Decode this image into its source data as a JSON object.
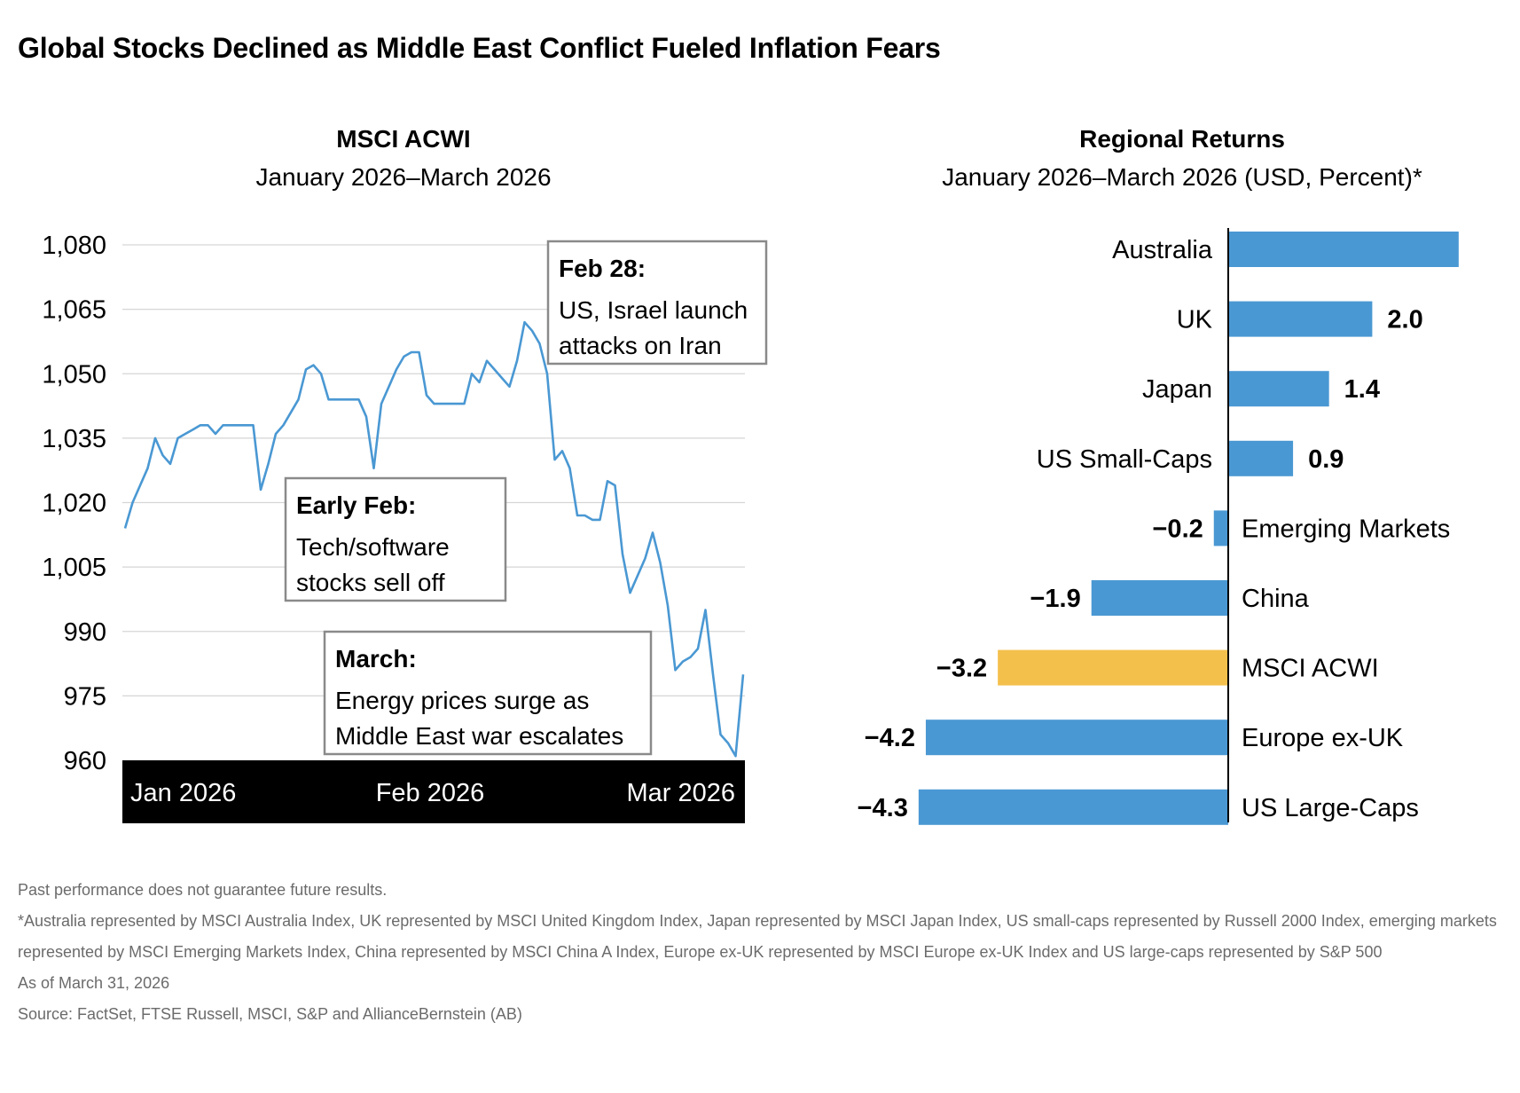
{
  "title": "Global Stocks Declined as Middle East Conflict Fueled Inflation Fears",
  "colors": {
    "bar": "#4a98d3",
    "highlight": "#f4c04c",
    "line": "#4a98d3",
    "axis_band": "#000000",
    "grid": "#d6d6d6",
    "note_border": "#8a8a8a"
  },
  "chart_data": [
    {
      "type": "line",
      "title": "MSCI ACWI",
      "subtitle": "January 2026–March 2026",
      "ylim": [
        960,
        1080
      ],
      "yticks": [
        1080,
        1065,
        1050,
        1035,
        1020,
        1005,
        990,
        975,
        960
      ],
      "ytick_labels": [
        "1,080",
        "1,065",
        "1,050",
        "1,035",
        "1,020",
        "1,005",
        "990",
        "975",
        "960"
      ],
      "xtick_labels": [
        "Jan 2026",
        "Feb 2026",
        "Mar 2026"
      ],
      "grid": true,
      "series": [
        {
          "values": [
            1014,
            1020,
            1024,
            1028,
            1035,
            1031,
            1029,
            1035,
            1036,
            1037,
            1038,
            1038,
            1036,
            1038,
            1038,
            1038,
            1038,
            1038,
            1023,
            1029,
            1036,
            1038,
            1041,
            1044,
            1051,
            1052,
            1050,
            1044,
            1044,
            1044,
            1044,
            1044,
            1040,
            1028,
            1043,
            1047,
            1051,
            1054,
            1055,
            1055,
            1045,
            1043,
            1043,
            1043,
            1043,
            1043,
            1050,
            1048,
            1053,
            1051,
            1049,
            1047,
            1053,
            1062,
            1060,
            1057,
            1050,
            1030,
            1032,
            1028,
            1017,
            1017,
            1016,
            1016,
            1025,
            1024,
            1008,
            999,
            1003,
            1007,
            1013,
            1006,
            996,
            981,
            983,
            984,
            986,
            995,
            980,
            966,
            964,
            961,
            980
          ]
        }
      ],
      "annotations": [
        {
          "title": "Feb 28:",
          "lines": [
            "US, Israel launch",
            "attacks on Iran"
          ]
        },
        {
          "title": "Early Feb:",
          "lines": [
            "Tech/software",
            "stocks sell off"
          ]
        },
        {
          "title": "March:",
          "lines": [
            "Energy prices surge as",
            "Middle East war escalates"
          ]
        }
      ]
    },
    {
      "type": "bar",
      "orientation": "horizontal",
      "title": "Regional Returns",
      "subtitle": "January 2026–March 2026 (USD, Percent)*",
      "categories": [
        "Australia",
        "UK",
        "Japan",
        "US Small-Caps",
        "Emerging Markets",
        "China",
        "MSCI ACWI",
        "Europe ex-UK",
        "US Large-Caps"
      ],
      "values": [
        3.2,
        2.0,
        1.4,
        0.9,
        -0.2,
        -1.9,
        -3.2,
        -4.2,
        -4.3
      ],
      "labels": [
        "",
        "2.0",
        "1.4",
        "0.9",
        "−0.2",
        "−1.9",
        "−3.2",
        "−4.2",
        "−4.3"
      ],
      "highlight": "MSCI ACWI"
    }
  ],
  "footnotes": [
    "Past performance does not guarantee future results.",
    "*Australia represented by MSCI Australia Index, UK represented by MSCI United Kingdom Index, Japan represented by MSCI Japan Index, US small-caps represented by Russell 2000 Index, emerging markets represented by MSCI Emerging Markets Index, China represented by MSCI China A Index, Europe ex-UK represented by MSCI Europe ex-UK Index and US large-caps represented by S&P 500",
    "As of March 31, 2026",
    "Source: FactSet, FTSE Russell, MSCI, S&P and AllianceBernstein (AB)"
  ]
}
